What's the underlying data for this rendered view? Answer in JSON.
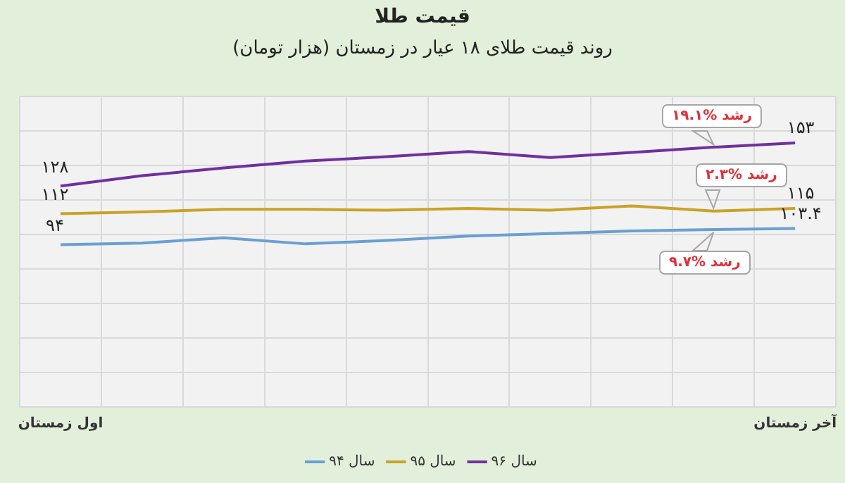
{
  "chart_data": {
    "type": "line",
    "title": "قیمت طلا",
    "subtitle": "روند قیمت طلای ۱۸ عیار در زمستان (هزار تومان)",
    "categories": [
      "اول زمستان",
      null,
      null,
      null,
      null,
      null,
      null,
      null,
      null,
      "آخر زمستان"
    ],
    "series": [
      {
        "name": "سال ۹۴",
        "color": "#6a9fd4",
        "values": [
          94,
          95,
          98,
          94.5,
          96.5,
          99,
          100.5,
          102,
          102.8,
          103.4
        ],
        "value_labels": [
          "۹۴",
          null,
          null,
          null,
          null,
          null,
          null,
          null,
          null,
          "۱۰۳.۴"
        ]
      },
      {
        "name": "سال ۹۵",
        "color": "#c9a227",
        "values": [
          112,
          113,
          114.5,
          114.5,
          114,
          115,
          114,
          116.5,
          113.5,
          115
        ],
        "value_labels": [
          "۱۱۲",
          null,
          null,
          null,
          null,
          null,
          null,
          null,
          null,
          "۱۱۵"
        ]
      },
      {
        "name": "سال ۹۶",
        "color": "#7030a0",
        "values": [
          128,
          134,
          138.5,
          142.5,
          145,
          148,
          144.5,
          147.5,
          150.5,
          153
        ],
        "value_labels": [
          "۱۲۸",
          null,
          null,
          null,
          null,
          null,
          null,
          null,
          null,
          "۱۵۳"
        ]
      }
    ],
    "ylim": [
      0,
      180
    ],
    "yticks": [
      {
        "value": 0,
        "label": null
      },
      {
        "value": 20,
        "label": null
      },
      {
        "value": 40,
        "label": null
      },
      {
        "value": 60,
        "label": null
      },
      {
        "value": 80,
        "label": null
      },
      {
        "value": 100,
        "label": null
      },
      {
        "value": 120,
        "label": null
      },
      {
        "value": 140,
        "label": null
      },
      {
        "value": 160,
        "label": null
      },
      {
        "value": 180,
        "label": null
      }
    ],
    "tick_labels": "x",
    "grid": true,
    "legend": "bottom",
    "marker": "none",
    "line_style": "solid",
    "annotations": [
      "رشد %۱۹.۱",
      "رشد %۲.۳",
      "رشد %۹.۷"
    ]
  }
}
